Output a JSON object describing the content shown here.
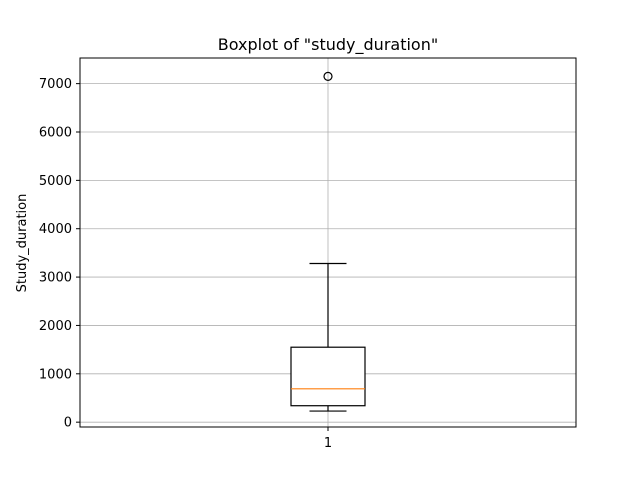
{
  "chart_data": {
    "type": "boxplot",
    "title": "Boxplot of \"study_duration\"",
    "xlabel": "",
    "ylabel": "Study_duration",
    "categories": [
      "1"
    ],
    "series": [
      {
        "min": 230,
        "q1": 340,
        "median": 690,
        "q3": 1550,
        "max": 3280,
        "outliers": [
          7150
        ]
      }
    ],
    "ylim": [
      -100,
      7530
    ],
    "yticks": [
      0,
      1000,
      2000,
      3000,
      4000,
      5000,
      6000,
      7000
    ],
    "grid": true,
    "colors": {
      "box": "#000000",
      "median": "#ff7f0e",
      "grid": "#b0b0b0",
      "outlier_edge": "#000000"
    }
  }
}
